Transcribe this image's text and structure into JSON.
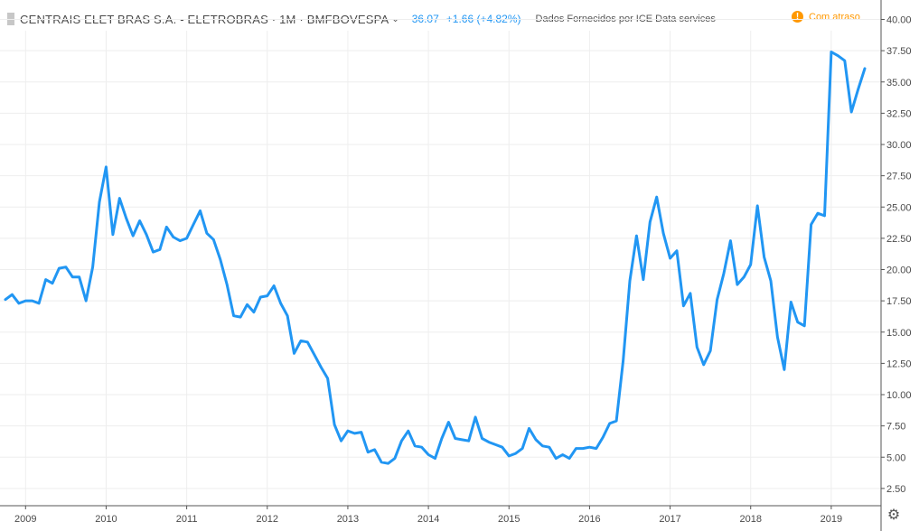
{
  "header": {
    "title": "CENTRAIS ELET BRAS S.A. - ELETROBRAS · 1M · BMFBOVESPA",
    "chevron": "⌄",
    "last_price": "36.07",
    "change": "+1.66 (+4.82%)",
    "provider": "Dados Fornecidos por ICE Data services",
    "delay_icon": "!",
    "delay_label": "Com atraso"
  },
  "settings_icon": "gear-icon",
  "colors": {
    "line": "#2196f3",
    "grid": "#eeeeee",
    "axis_text": "#4a4a4a",
    "delay": "#ff9800"
  },
  "chart_data": {
    "type": "line",
    "title": "",
    "xlabel": "",
    "ylabel": "",
    "frequency": "monthly",
    "x_start": "2008-10",
    "x_end": "2019-06",
    "ylim": [
      1.5,
      41.0
    ],
    "y_ticks": [
      "2.50",
      "5.00",
      "7.50",
      "10.00",
      "12.50",
      "15.00",
      "17.50",
      "20.00",
      "22.50",
      "25.00",
      "27.50",
      "30.00",
      "32.50",
      "35.00",
      "37.50",
      "40.00"
    ],
    "x_ticks": [
      {
        "label": "2009",
        "x": "2009-01"
      },
      {
        "label": "2010",
        "x": "2010-01"
      },
      {
        "label": "2011",
        "x": "2011-01"
      },
      {
        "label": "2012",
        "x": "2012-01"
      },
      {
        "label": "2013",
        "x": "2013-01"
      },
      {
        "label": "2014",
        "x": "2014-01"
      },
      {
        "label": "2015",
        "x": "2015-01"
      },
      {
        "label": "2016",
        "x": "2016-01"
      },
      {
        "label": "2017",
        "x": "2017-01"
      },
      {
        "label": "2018",
        "x": "2018-01"
      },
      {
        "label": "2019",
        "x": "2019-01"
      }
    ],
    "grid": true,
    "series": [
      {
        "x": [
          "2008-10",
          "2008-11",
          "2008-12",
          "2009-01",
          "2009-02",
          "2009-03",
          "2009-04",
          "2009-05",
          "2009-06",
          "2009-07",
          "2009-08",
          "2009-09",
          "2009-10",
          "2009-11",
          "2009-12",
          "2010-01",
          "2010-02",
          "2010-03",
          "2010-04",
          "2010-05",
          "2010-06",
          "2010-07",
          "2010-08",
          "2010-09",
          "2010-10",
          "2010-11",
          "2010-12",
          "2011-01",
          "2011-02",
          "2011-03",
          "2011-04",
          "2011-05",
          "2011-06",
          "2011-07",
          "2011-08",
          "2011-09",
          "2011-10",
          "2011-11",
          "2011-12",
          "2012-01",
          "2012-02",
          "2012-03",
          "2012-04",
          "2012-05",
          "2012-06",
          "2012-07",
          "2012-08",
          "2012-09",
          "2012-10",
          "2012-11",
          "2012-12",
          "2013-01",
          "2013-02",
          "2013-03",
          "2013-04",
          "2013-05",
          "2013-06",
          "2013-07",
          "2013-08",
          "2013-09",
          "2013-10",
          "2013-11",
          "2013-12",
          "2014-01",
          "2014-02",
          "2014-03",
          "2014-04",
          "2014-05",
          "2014-06",
          "2014-07",
          "2014-08",
          "2014-09",
          "2014-10",
          "2014-11",
          "2014-12",
          "2015-01",
          "2015-02",
          "2015-03",
          "2015-04",
          "2015-05",
          "2015-06",
          "2015-07",
          "2015-08",
          "2015-09",
          "2015-10",
          "2015-11",
          "2015-12",
          "2016-01",
          "2016-02",
          "2016-03",
          "2016-04",
          "2016-05",
          "2016-06",
          "2016-07",
          "2016-08",
          "2016-09",
          "2016-10",
          "2016-11",
          "2016-12",
          "2017-01",
          "2017-02",
          "2017-03",
          "2017-04",
          "2017-05",
          "2017-06",
          "2017-07",
          "2017-08",
          "2017-09",
          "2017-10",
          "2017-11",
          "2017-12",
          "2018-01",
          "2018-02",
          "2018-03",
          "2018-04",
          "2018-05",
          "2018-06",
          "2018-07",
          "2018-08",
          "2018-09",
          "2018-10",
          "2018-11",
          "2018-12",
          "2019-01",
          "2019-02",
          "2019-03",
          "2019-04",
          "2019-05",
          "2019-06"
        ],
        "values": [
          17.6,
          18.0,
          17.3,
          17.5,
          17.5,
          17.3,
          19.2,
          18.9,
          20.1,
          20.2,
          19.4,
          19.4,
          17.5,
          20.2,
          25.4,
          28.2,
          22.8,
          25.7,
          24.1,
          22.7,
          23.9,
          22.8,
          21.4,
          21.6,
          23.4,
          22.6,
          22.3,
          22.5,
          23.6,
          24.7,
          22.9,
          22.4,
          20.8,
          18.8,
          16.3,
          16.2,
          17.2,
          16.6,
          17.8,
          17.9,
          18.7,
          17.3,
          16.3,
          13.3,
          14.3,
          14.2,
          13.2,
          12.2,
          11.3,
          7.6,
          6.3,
          7.1,
          6.9,
          7.0,
          5.4,
          5.6,
          4.6,
          4.5,
          4.9,
          6.3,
          7.1,
          5.9,
          5.8,
          5.2,
          4.9,
          6.5,
          7.8,
          6.5,
          6.4,
          6.3,
          8.2,
          6.5,
          6.2,
          6.0,
          5.8,
          5.1,
          5.3,
          5.7,
          7.3,
          6.4,
          5.9,
          5.8,
          4.9,
          5.2,
          4.9,
          5.7,
          5.7,
          5.8,
          5.7,
          6.6,
          7.7,
          7.9,
          12.7,
          19.1,
          22.7,
          19.2,
          23.8,
          25.8,
          22.9,
          20.9,
          21.5,
          17.1,
          18.1,
          13.8,
          12.4,
          13.5,
          17.6,
          19.7,
          22.3,
          18.8,
          19.4,
          20.4,
          25.1,
          21.0,
          19.1,
          14.6,
          12.0,
          17.4,
          15.8,
          15.5,
          23.6,
          24.5,
          24.3,
          37.4,
          37.1,
          36.7,
          32.6,
          34.4,
          36.07
        ]
      }
    ]
  }
}
